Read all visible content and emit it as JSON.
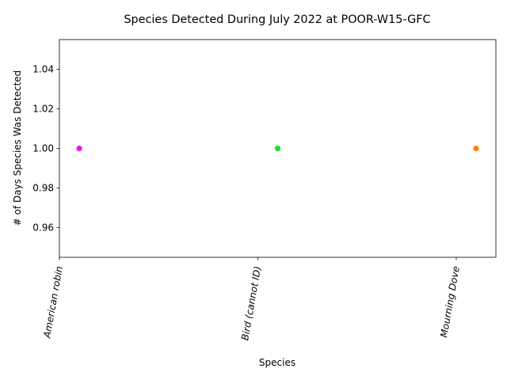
{
  "chart_data": {
    "type": "scatter",
    "title": "Species Detected During July 2022 at POOR-W15-GFC",
    "xlabel": "Species",
    "ylabel": "# of Days Species Was Detected",
    "categories": [
      "American robin",
      "Bird (cannot ID)",
      "Mourning Dove"
    ],
    "values": [
      1,
      1,
      1
    ],
    "point_colors": [
      "#e619e6",
      "#19e619",
      "#ff8000"
    ],
    "ylim": [
      0.945,
      1.055
    ],
    "yticks": [
      0.96,
      0.98,
      1.0,
      1.02,
      1.04
    ],
    "ytick_labels": [
      "0.96",
      "0.98",
      "1.00",
      "1.02",
      "1.04"
    ],
    "grid": false,
    "legend": false
  }
}
